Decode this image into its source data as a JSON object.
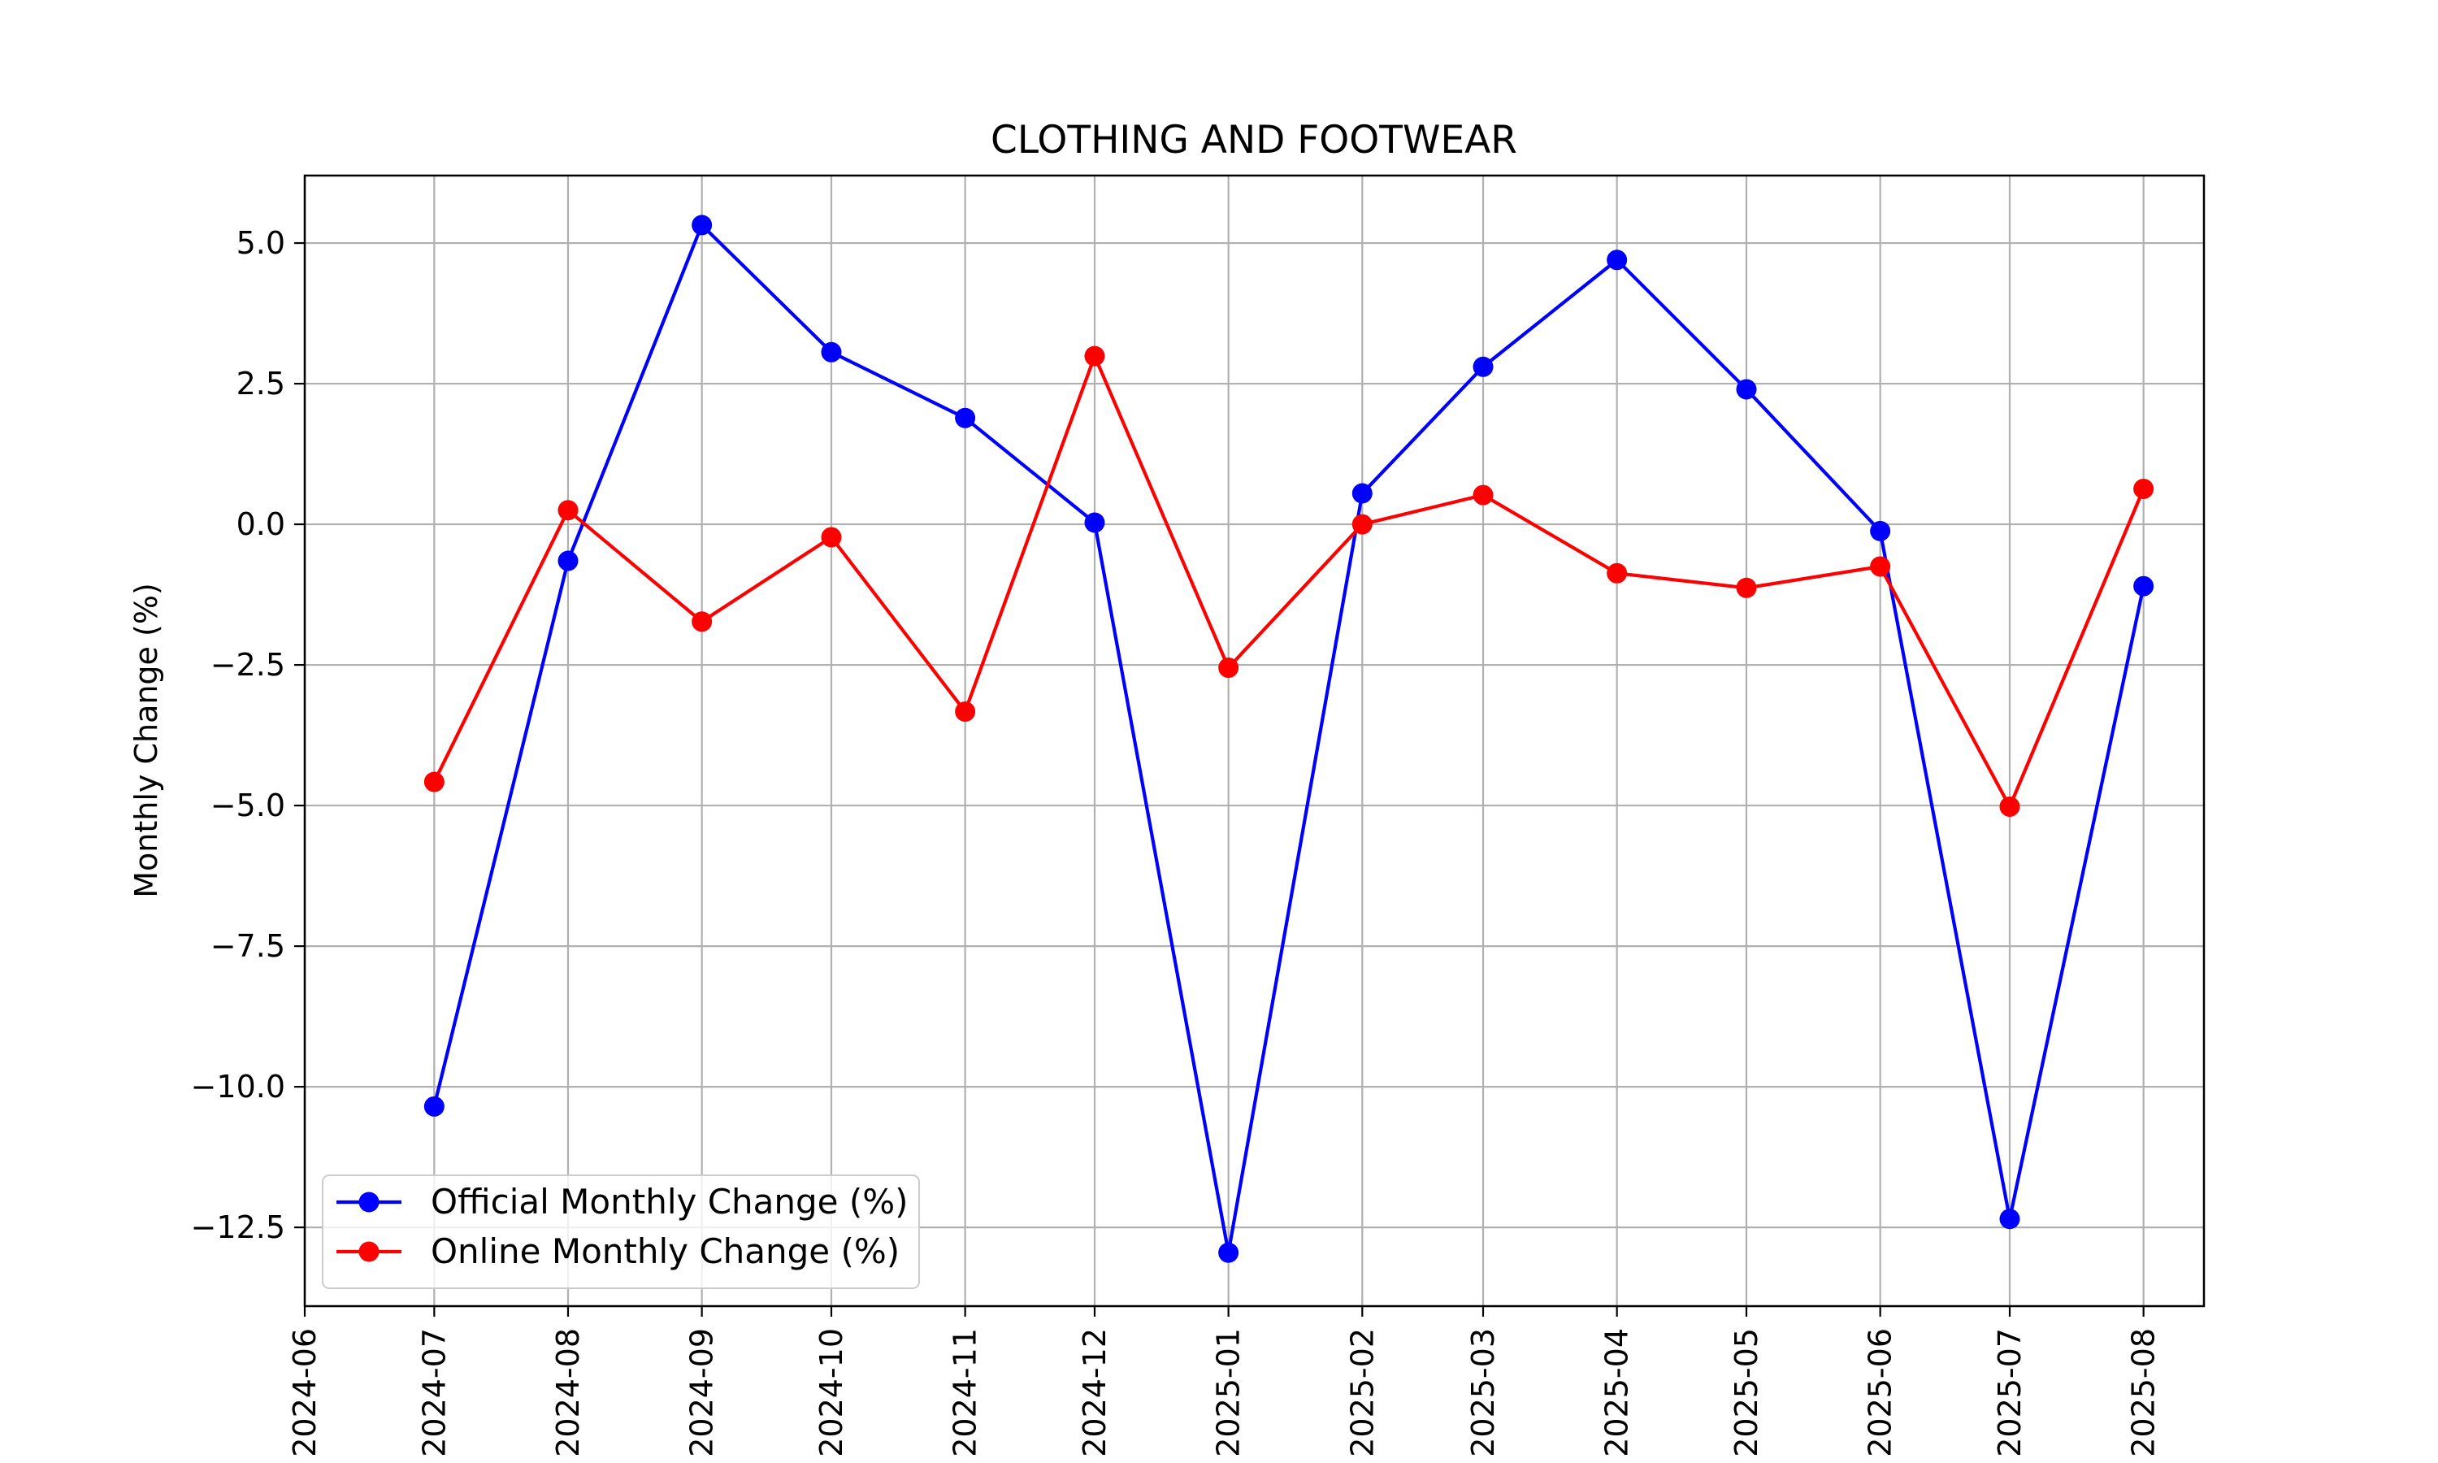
{
  "chart_data": {
    "type": "line",
    "title": "CLOTHING AND FOOTWEAR",
    "xlabel": "",
    "ylabel": "Monthly Change (%)",
    "x": [
      "2024-07",
      "2024-08",
      "2024-09",
      "2024-10",
      "2024-11",
      "2024-12",
      "2025-01",
      "2025-02",
      "2025-03",
      "2025-04",
      "2025-05",
      "2025-06",
      "2025-07",
      "2025-08"
    ],
    "x_ticks": [
      "2024-06",
      "2024-07",
      "2024-08",
      "2024-09",
      "2024-10",
      "2024-11",
      "2024-12",
      "2025-01",
      "2025-02",
      "2025-03",
      "2025-04",
      "2025-05",
      "2025-06",
      "2025-07",
      "2025-08"
    ],
    "xlim": [
      "2024-06-01",
      "2025-08-15"
    ],
    "y_ticks": [
      5.0,
      2.5,
      0.0,
      -2.5,
      -5.0,
      -7.5,
      -10.0,
      -12.5
    ],
    "y_tick_labels": [
      "5.0",
      "2.5",
      "0.0",
      "−2.5",
      "−5.0",
      "−7.5",
      "−10.0",
      "−12.5"
    ],
    "ylim": [
      -13.9,
      6.2
    ],
    "grid": true,
    "legend_position": "lower-left",
    "series": [
      {
        "name": "Official Monthly Change (%)",
        "color": "#0000ff",
        "marker": "circle",
        "values": [
          -10.35,
          -0.65,
          5.32,
          3.06,
          1.89,
          0.03,
          -12.95,
          0.55,
          2.8,
          4.7,
          2.4,
          -0.12,
          -12.35,
          -1.1
        ]
      },
      {
        "name": "Online Monthly Change (%)",
        "color": "#ff0000",
        "marker": "circle",
        "values": [
          -4.58,
          0.25,
          -1.73,
          -0.23,
          -3.33,
          2.99,
          -2.55,
          0.0,
          0.52,
          -0.87,
          -1.13,
          -0.75,
          -5.02,
          0.63
        ]
      }
    ]
  }
}
